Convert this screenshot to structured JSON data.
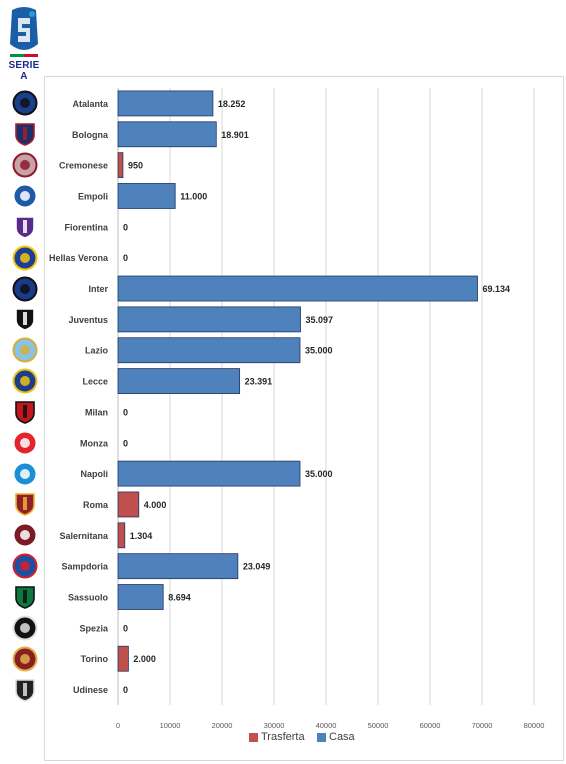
{
  "header": {
    "logo_text": "SERIE A",
    "logo_color": "#1b5ea8",
    "logo_accent": "#2b9bd7"
  },
  "colors": {
    "casa": "#4f81bd",
    "trasferta": "#c0504d",
    "bar_stroke": "#1f3864",
    "gridline": "#d9d9d9"
  },
  "chart_data": {
    "type": "bar",
    "orientation": "horizontal",
    "categories": [
      "Atalanta",
      "Bologna",
      "Cremonese",
      "Empoli",
      "Fiorentina",
      "Hellas Verona",
      "Inter",
      "Juventus",
      "Lazio",
      "Lecce",
      "Milan",
      "Monza",
      "Napoli",
      "Roma",
      "Salernitana",
      "Sampdoria",
      "Sassuolo",
      "Spezia",
      "Torino",
      "Udinese"
    ],
    "values": [
      18252,
      18901,
      950,
      11000,
      0,
      0,
      69134,
      35097,
      35000,
      23391,
      0,
      0,
      35000,
      4000,
      1304,
      23049,
      8694,
      0,
      2000,
      0
    ],
    "series_of_each": [
      "Casa",
      "Casa",
      "Trasferta",
      "Casa",
      "Casa",
      "Casa",
      "Casa",
      "Casa",
      "Casa",
      "Casa",
      "Casa",
      "Casa",
      "Casa",
      "Trasferta",
      "Trasferta",
      "Casa",
      "Casa",
      "Casa",
      "Trasferta",
      "Casa"
    ],
    "value_labels": [
      "18.252",
      "18.901",
      "950",
      "11.000",
      "0",
      "0",
      "69.134",
      "35.097",
      "35.000",
      "23.391",
      "0",
      "0",
      "35.000",
      "4.000",
      "1.304",
      "23.049",
      "8.694",
      "0",
      "2.000",
      "0"
    ],
    "xlim": [
      0,
      80000
    ],
    "x_ticks": [
      "0",
      "10000",
      "20000",
      "30000",
      "40000",
      "50000",
      "60000",
      "70000",
      "80000"
    ],
    "x_tick_values": [
      0,
      10000,
      20000,
      30000,
      40000,
      50000,
      60000,
      70000,
      80000
    ],
    "grid": true,
    "legend": {
      "position": "bottom",
      "entries": [
        {
          "name": "Trasferta",
          "color": "#c0504d"
        },
        {
          "name": "Casa",
          "color": "#4f81bd"
        }
      ]
    },
    "title": "",
    "xlabel": "",
    "ylabel": ""
  },
  "team_badges": [
    {
      "team": "Atalanta",
      "icon": "atalanta-crest-icon",
      "primary": "#1b3f8c",
      "secondary": "#111111"
    },
    {
      "team": "Bologna",
      "icon": "bologna-crest-icon",
      "primary": "#1a2f6e",
      "secondary": "#a81f24"
    },
    {
      "team": "Cremonese",
      "icon": "cremonese-crest-icon",
      "primary": "#c8a2a5",
      "secondary": "#8b1a2b"
    },
    {
      "team": "Empoli",
      "icon": "empoli-crest-icon",
      "primary": "#1f5aa8",
      "secondary": "#ffffff"
    },
    {
      "team": "Fiorentina",
      "icon": "fiorentina-crest-icon",
      "primary": "#5a2a8a",
      "secondary": "#ffffff"
    },
    {
      "team": "Hellas Verona",
      "icon": "hellas-verona-crest-icon",
      "primary": "#1c3f94",
      "secondary": "#f2c511"
    },
    {
      "team": "Inter",
      "icon": "inter-crest-icon",
      "primary": "#1a3b8c",
      "secondary": "#111111"
    },
    {
      "team": "Juventus",
      "icon": "juventus-crest-icon",
      "primary": "#111111",
      "secondary": "#ffffff"
    },
    {
      "team": "Lazio",
      "icon": "lazio-crest-icon",
      "primary": "#87c3e8",
      "secondary": "#d4af37"
    },
    {
      "team": "Lecce",
      "icon": "lecce-crest-icon",
      "primary": "#1f3c88",
      "secondary": "#e8c31a"
    },
    {
      "team": "Milan",
      "icon": "milan-crest-icon",
      "primary": "#c4161c",
      "secondary": "#111111"
    },
    {
      "team": "Monza",
      "icon": "monza-crest-icon",
      "primary": "#e3242b",
      "secondary": "#ffffff"
    },
    {
      "team": "Napoli",
      "icon": "napoli-crest-icon",
      "primary": "#1b8fd6",
      "secondary": "#ffffff"
    },
    {
      "team": "Roma",
      "icon": "roma-crest-icon",
      "primary": "#8e1f2f",
      "secondary": "#f0b323"
    },
    {
      "team": "Salernitana",
      "icon": "salernitana-crest-icon",
      "primary": "#7a1a22",
      "secondary": "#ffffff"
    },
    {
      "team": "Sampdoria",
      "icon": "sampdoria-crest-icon",
      "primary": "#1b4fa8",
      "secondary": "#d42027"
    },
    {
      "team": "Sassuolo",
      "icon": "sassuolo-crest-icon",
      "primary": "#0c7a3e",
      "secondary": "#111111"
    },
    {
      "team": "Spezia",
      "icon": "spezia-crest-icon",
      "primary": "#111111",
      "secondary": "#e0e0e0"
    },
    {
      "team": "Torino",
      "icon": "torino-crest-icon",
      "primary": "#8a1f1f",
      "secondary": "#e0b04a"
    },
    {
      "team": "Udinese",
      "icon": "udinese-crest-icon",
      "primary": "#222222",
      "secondary": "#dddddd"
    }
  ]
}
